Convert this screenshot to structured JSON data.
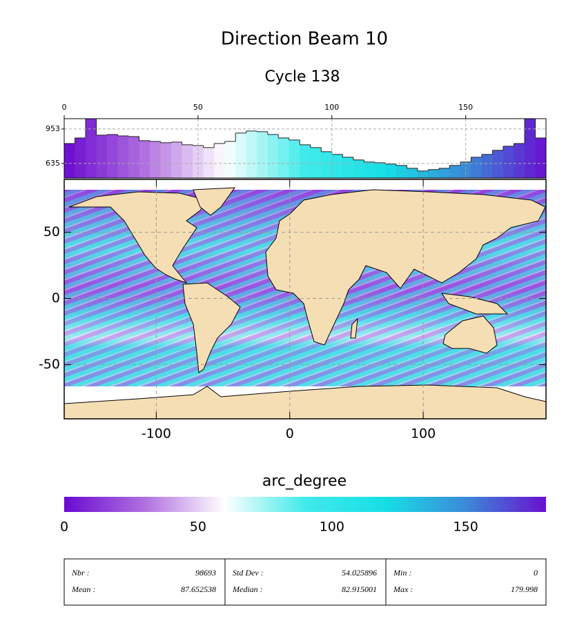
{
  "chart_data": [
    {
      "type": "histogram",
      "title": "Direction Beam 10",
      "subtitle": "Cycle 138",
      "bins": [
        0,
        4,
        8,
        12,
        16,
        20,
        24,
        28,
        32,
        36,
        40,
        44,
        48,
        52,
        56,
        60,
        64,
        68,
        72,
        76,
        80,
        84,
        88,
        92,
        96,
        100,
        104,
        108,
        112,
        116,
        120,
        124,
        128,
        132,
        136,
        140,
        144,
        148,
        152,
        156,
        160,
        164,
        168,
        172,
        176,
        180
      ],
      "values": [
        819,
        870,
        1048,
        896,
        902,
        889,
        883,
        845,
        838,
        826,
        832,
        807,
        800,
        781,
        819,
        838,
        915,
        934,
        928,
        902,
        870,
        851,
        807,
        781,
        743,
        718,
        692,
        667,
        648,
        641,
        629,
        616,
        590,
        565,
        578,
        590,
        616,
        648,
        692,
        718,
        756,
        794,
        819,
        1048,
        870
      ],
      "xlim": [
        0,
        180
      ],
      "xticks": [
        0,
        50,
        100,
        150
      ],
      "ylim": [
        500,
        1048
      ],
      "yticks": [
        635,
        953
      ],
      "grid": true,
      "colors": [
        "#6a0ad0",
        "#b070e0",
        "#ffffff",
        "#40eaea",
        "#16dfe6",
        "#3a8ad8",
        "#6a10d0"
      ]
    },
    {
      "type": "map",
      "xlim": [
        -169,
        192
      ],
      "ylim": [
        -91,
        90
      ],
      "xticks": [
        -100,
        0,
        100
      ],
      "yticks": [
        50,
        0,
        -50
      ],
      "grid": true,
      "land_color": "#f5deb3"
    },
    {
      "type": "colorbar",
      "label": "arc_degree",
      "xlim": [
        0,
        180
      ],
      "xticks": [
        0,
        50,
        100,
        150
      ],
      "colors": [
        "#6a0ad0",
        "#b070e0",
        "#ffffff",
        "#40eaea",
        "#16dfe6",
        "#3a8ad8",
        "#6a10d0"
      ]
    }
  ],
  "stats": {
    "columns": [
      [
        {
          "label": "Nbr :",
          "value": "98693"
        },
        {
          "label": "Mean :",
          "value": "87.652538"
        }
      ],
      [
        {
          "label": "Std Dev :",
          "value": "54.025896"
        },
        {
          "label": "Median :",
          "value": "82.915001"
        }
      ],
      [
        {
          "label": "Min :",
          "value": "0"
        },
        {
          "label": "Max :",
          "value": "179.998"
        }
      ]
    ]
  }
}
